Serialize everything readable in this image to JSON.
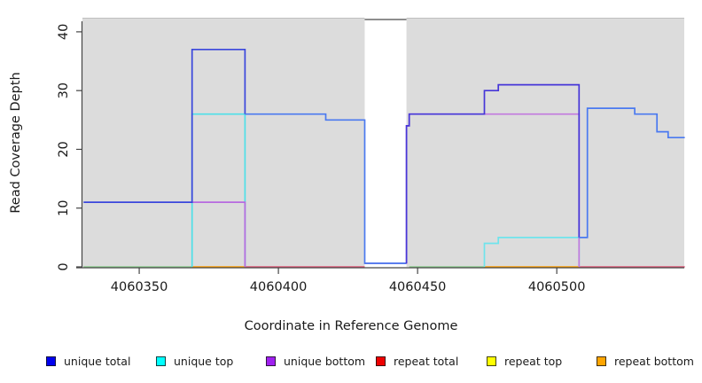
{
  "figure": {
    "background": "#ffffff",
    "axis_color": "#454545",
    "text_color": "#1a1a1a"
  },
  "chart_data": {
    "type": "line",
    "subtype": "step-coverage-plot",
    "title": "",
    "xlabel": "Coordinate in Reference Genome",
    "ylabel": "Read Coverage Depth",
    "xlim": [
      4060329.6,
      4060545.8
    ],
    "ylim": [
      0,
      42.4
    ],
    "x_ticks": [
      4060350,
      4060400,
      4060450,
      4060500
    ],
    "y_ticks": [
      0,
      10,
      20,
      30,
      40
    ],
    "grid": false,
    "legend_position": "bottom",
    "panel_bg": "#dcdcdc",
    "panel_top_edge": "#bfbfbf",
    "gap_region": {
      "x_start": 4060431,
      "x_end": 4060446,
      "fill": "#ffffff",
      "cap_depth": 42.1,
      "cap_color": "#8e8e8e"
    },
    "series": [
      {
        "name": "unique top",
        "chunks": [
          {
            "color": "#4edfe8",
            "points": [
              [
                4060369,
                0
              ],
              [
                4060369,
                26
              ],
              [
                4060388,
                26
              ],
              [
                4060388,
                0
              ]
            ]
          },
          {
            "color": "#6fe4ec",
            "points": [
              [
                4060474,
                0
              ],
              [
                4060474,
                4
              ],
              [
                4060479,
                4
              ],
              [
                4060479,
                5
              ],
              [
                4060508,
                5
              ],
              [
                4060508,
                0
              ]
            ]
          }
        ]
      },
      {
        "name": "unique bottom",
        "chunks": [
          {
            "color": "#b76ae0",
            "points": [
              [
                4060369,
                11
              ],
              [
                4060388,
                11
              ],
              [
                4060388,
                0
              ]
            ]
          },
          {
            "color": "#c279de",
            "points": [
              [
                4060431,
                0.6
              ],
              [
                4060446,
                0.6
              ],
              [
                4060446,
                24
              ],
              [
                4060447,
                24
              ],
              [
                4060447,
                26
              ],
              [
                4060508,
                26
              ],
              [
                4060508,
                0
              ]
            ]
          }
        ]
      },
      {
        "name": "unique total",
        "chunks": [
          {
            "color": "#3a46dc",
            "points": [
              [
                4060330,
                11
              ],
              [
                4060369,
                11
              ],
              [
                4060369,
                37
              ],
              [
                4060388,
                37
              ],
              [
                4060388,
                26
              ]
            ]
          },
          {
            "color": "#4a79f0",
            "points": [
              [
                4060388,
                26
              ],
              [
                4060417,
                26
              ],
              [
                4060417,
                25
              ],
              [
                4060431,
                25
              ],
              [
                4060431,
                0.6
              ],
              [
                4060446,
                0.6
              ]
            ]
          },
          {
            "color": "#4636d8",
            "points": [
              [
                4060446,
                0.6
              ],
              [
                4060446,
                24
              ],
              [
                4060447,
                24
              ],
              [
                4060447,
                26
              ],
              [
                4060474,
                26
              ],
              [
                4060474,
                30
              ],
              [
                4060479,
                30
              ],
              [
                4060479,
                31
              ],
              [
                4060508,
                31
              ],
              [
                4060508,
                5
              ]
            ]
          },
          {
            "color": "#4a79f0",
            "points": [
              [
                4060508,
                5
              ],
              [
                4060511,
                5
              ],
              [
                4060511,
                27
              ],
              [
                4060528,
                27
              ],
              [
                4060528,
                26
              ],
              [
                4060536,
                26
              ],
              [
                4060536,
                23
              ],
              [
                4060540,
                23
              ],
              [
                4060540,
                22
              ],
              [
                4060546,
                22
              ]
            ]
          }
        ]
      }
    ],
    "baseline_segments": [
      {
        "x_start": 4060330,
        "x_end": 4060369,
        "depth": 0,
        "color": "#8fcd90"
      },
      {
        "x_start": 4060369,
        "x_end": 4060388,
        "depth": 0,
        "color": "#ff9d00"
      },
      {
        "x_start": 4060388,
        "x_end": 4060431,
        "depth": 0,
        "color": "#e05878"
      },
      {
        "x_start": 4060447,
        "x_end": 4060474,
        "depth": 0,
        "color": "#8fcd90"
      },
      {
        "x_start": 4060474,
        "x_end": 4060508,
        "depth": 0,
        "color": "#ff9d00"
      },
      {
        "x_start": 4060508,
        "x_end": 4060546,
        "depth": 0,
        "color": "#e05878"
      }
    ],
    "legend": [
      {
        "label": "unique total",
        "color": "#0000ee"
      },
      {
        "label": "unique top",
        "color": "#00ffff"
      },
      {
        "label": "unique bottom",
        "color": "#a020f0"
      },
      {
        "label": "repeat total",
        "color": "#ee0000"
      },
      {
        "label": "repeat top",
        "color": "#ffff00"
      },
      {
        "label": "repeat bottom",
        "color": "#ffa500"
      }
    ]
  }
}
